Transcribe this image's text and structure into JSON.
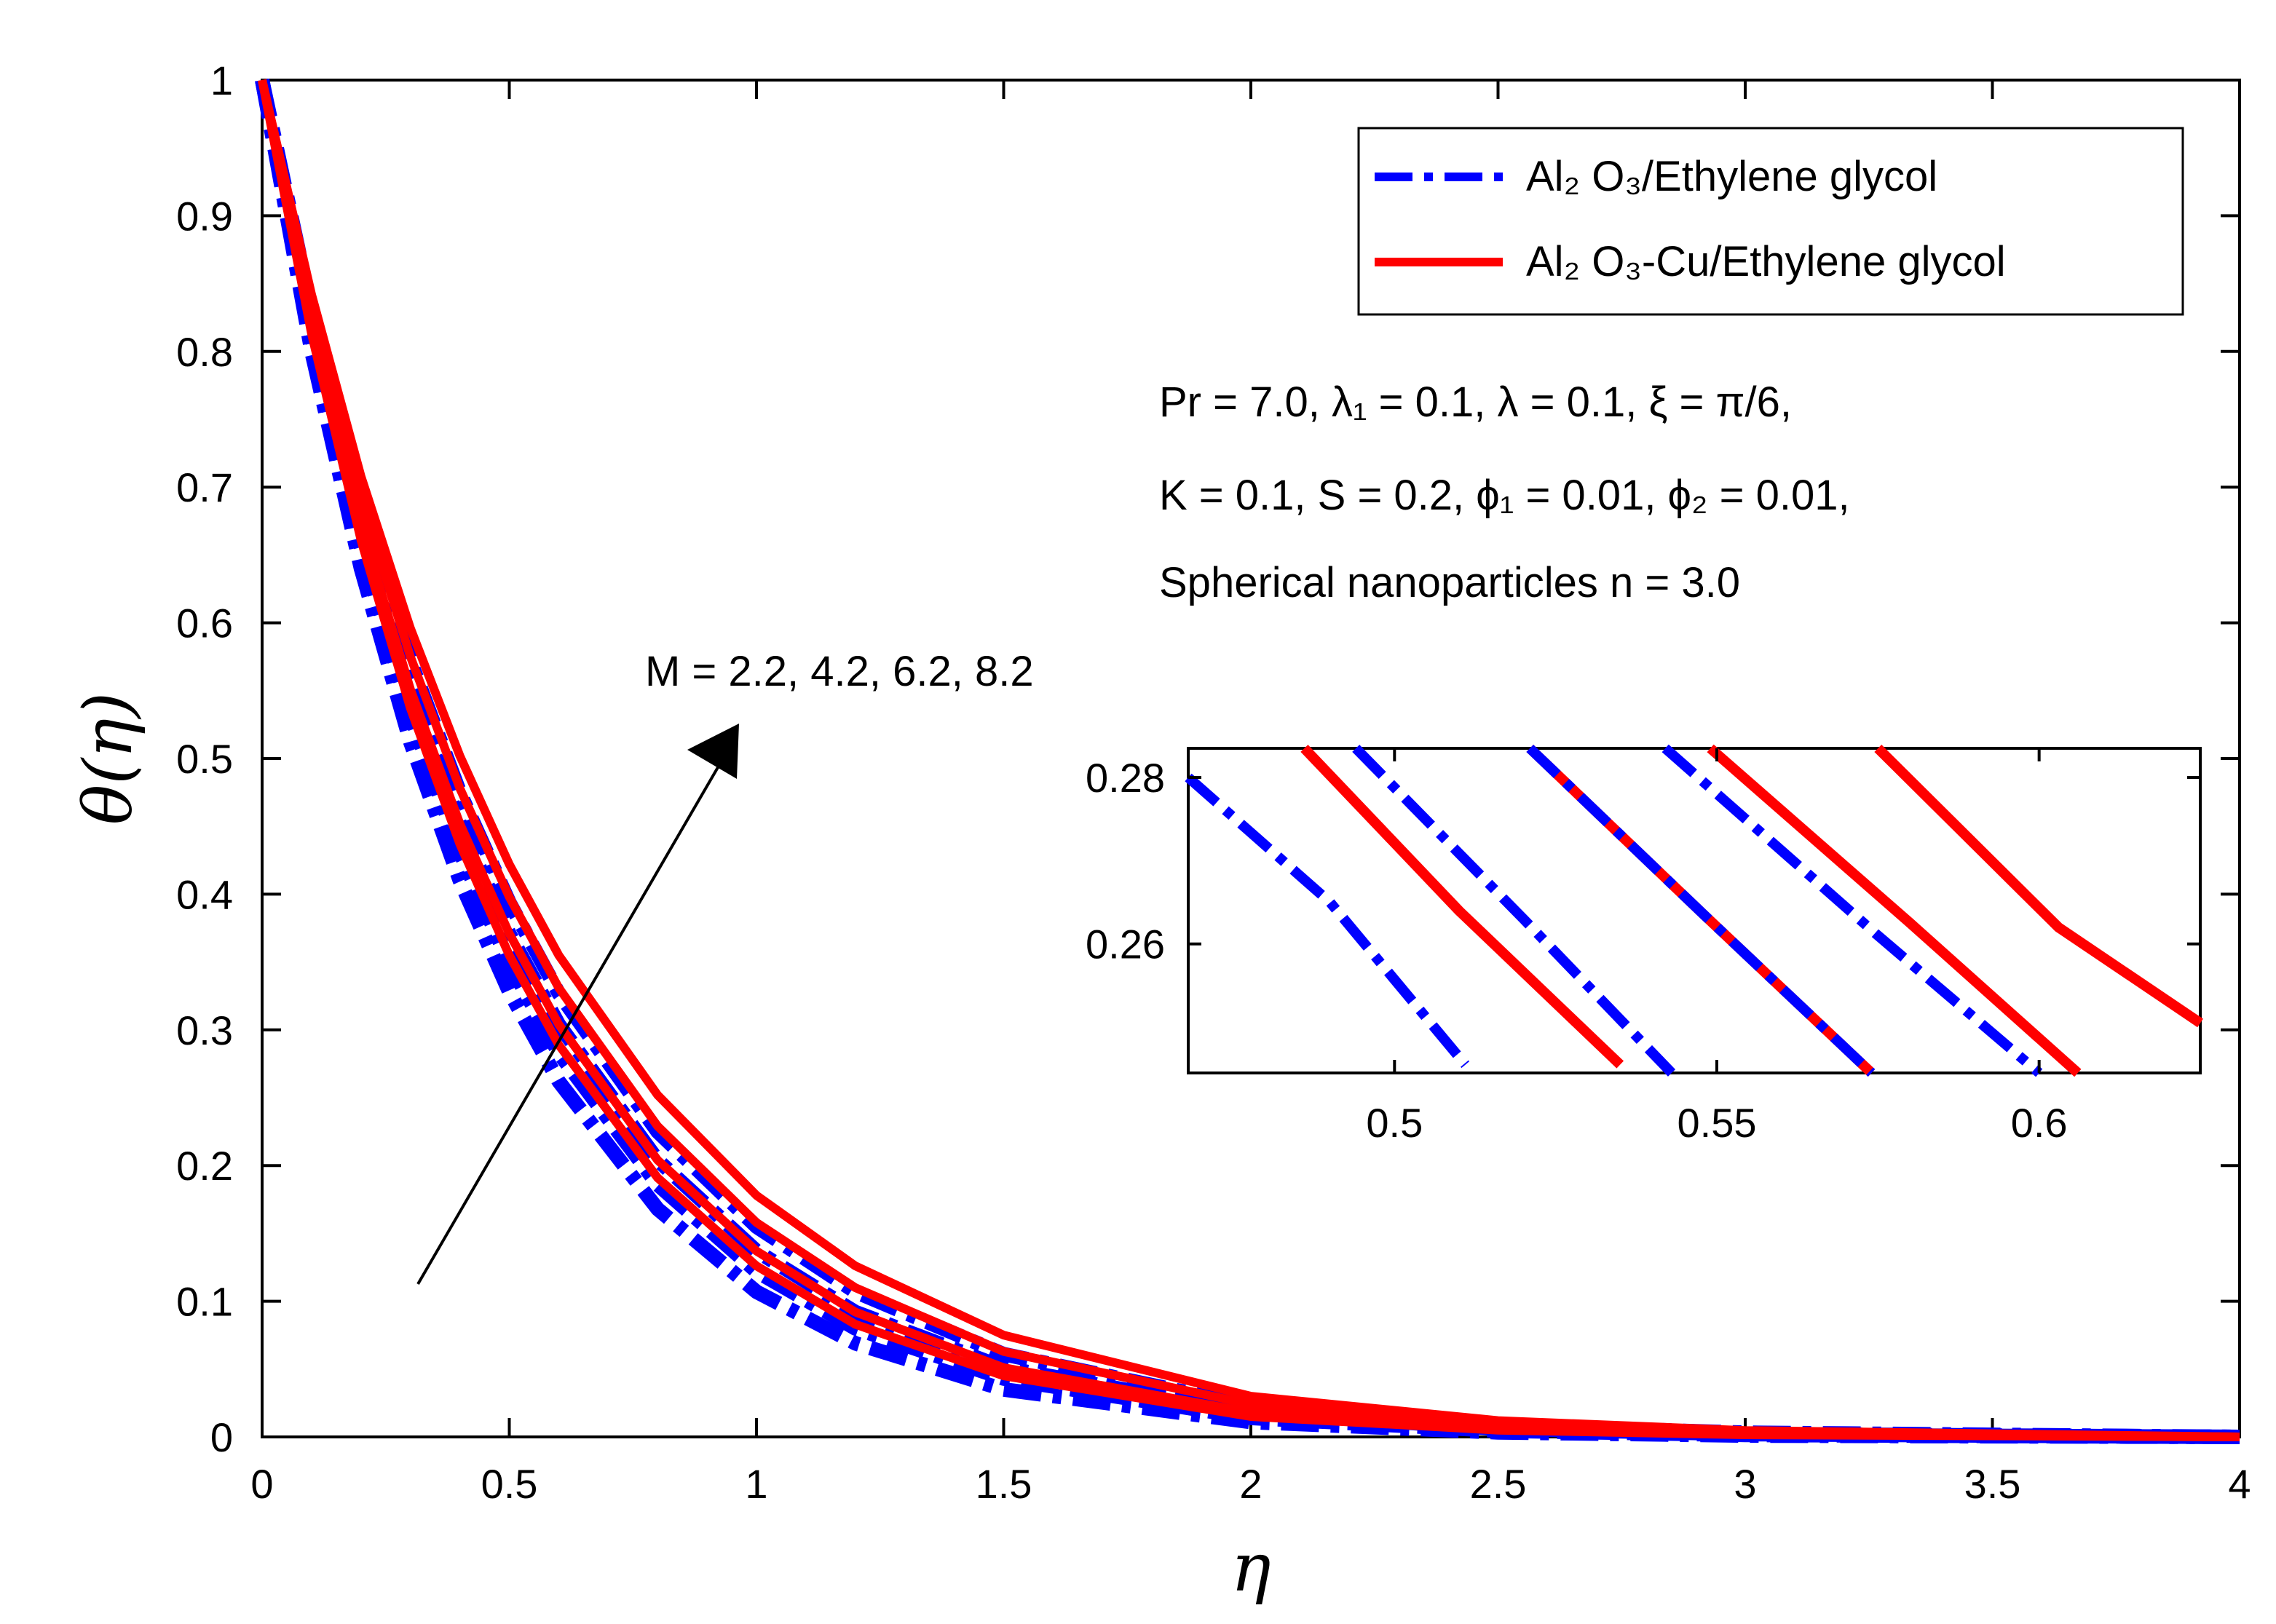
{
  "chart_data": {
    "type": "line",
    "xlabel": "η",
    "ylabel": "θ(η)",
    "xlim": [
      0,
      4
    ],
    "ylim": [
      0,
      1
    ],
    "xticks": [
      "0",
      "0.5",
      "1",
      "1.5",
      "2",
      "2.5",
      "3",
      "3.5",
      "4"
    ],
    "yticks": [
      "0",
      "0.1",
      "0.2",
      "0.3",
      "0.4",
      "0.5",
      "0.6",
      "0.7",
      "0.8",
      "0.9",
      "1"
    ],
    "grid": false,
    "legend_position": "top-right",
    "legend": [
      {
        "label": "Al₂ O₃/Ethylene glycol",
        "color": "#0000ff",
        "style": "dash-dot"
      },
      {
        "label": "Al₂ O₃-Cu/Ethylene glycol",
        "color": "#ff0000",
        "style": "solid"
      }
    ],
    "annotations": {
      "params_line1": "Pr = 7.0, λ₁ = 0.1, λ = 0.1, ξ = π/6,",
      "params_line2": "K = 0.1, S = 0.2, ϕ₁ = 0.01, ϕ₂ = 0.01,",
      "params_line3": "Spherical nanoparticles n = 3.0",
      "arrow_label": "M = 2.2, 4.2, 6.2, 8.2"
    },
    "M_values": [
      2.2,
      4.2,
      6.2,
      8.2
    ],
    "series": [
      {
        "fluid": "Al2O3/Ethylene glycol",
        "M": 2.2,
        "color": "#0000ff",
        "style": "dash-dot",
        "x": [
          0,
          0.1,
          0.2,
          0.3,
          0.4,
          0.5,
          0.6,
          0.8,
          1.0,
          1.2,
          1.5,
          2.0,
          2.5,
          3.0,
          4.0
        ],
        "y": [
          1,
          0.8,
          0.64,
          0.512,
          0.41,
          0.328,
          0.262,
          0.168,
          0.107,
          0.069,
          0.035,
          0.011,
          0.0034,
          0.001,
          0
        ]
      },
      {
        "fluid": "Al2O3/Ethylene glycol",
        "M": 4.2,
        "color": "#0000ff",
        "style": "dash-dot",
        "x": [
          0,
          0.1,
          0.2,
          0.3,
          0.4,
          0.5,
          0.6,
          0.8,
          1.0,
          1.2,
          1.5,
          2.0,
          2.5,
          3.0,
          4.0
        ],
        "y": [
          1,
          0.81,
          0.656,
          0.532,
          0.431,
          0.349,
          0.283,
          0.186,
          0.122,
          0.08,
          0.043,
          0.014,
          0.0046,
          0.0015,
          0
        ]
      },
      {
        "fluid": "Al2O3/Ethylene glycol",
        "M": 6.2,
        "color": "#0000ff",
        "style": "dash-dot",
        "x": [
          0,
          0.1,
          0.2,
          0.3,
          0.4,
          0.5,
          0.6,
          0.8,
          1.0,
          1.2,
          1.5,
          2.0,
          2.5,
          3.0,
          4.0
        ],
        "y": [
          1,
          0.82,
          0.672,
          0.551,
          0.452,
          0.371,
          0.304,
          0.204,
          0.137,
          0.092,
          0.051,
          0.018,
          0.0061,
          0.0021,
          0
        ]
      },
      {
        "fluid": "Al2O3/Ethylene glycol",
        "M": 8.2,
        "color": "#0000ff",
        "style": "dash-dot",
        "x": [
          0,
          0.1,
          0.2,
          0.3,
          0.4,
          0.5,
          0.6,
          0.8,
          1.0,
          1.2,
          1.5,
          2.0,
          2.5,
          3.0,
          4.0
        ],
        "y": [
          1,
          0.83,
          0.689,
          0.572,
          0.475,
          0.394,
          0.327,
          0.225,
          0.155,
          0.107,
          0.061,
          0.023,
          0.0085,
          0.0031,
          0
        ]
      },
      {
        "fluid": "Al2O3-Cu/Ethylene glycol",
        "M": 2.2,
        "color": "#ff0000",
        "style": "solid",
        "x": [
          0,
          0.1,
          0.2,
          0.3,
          0.4,
          0.5,
          0.6,
          0.8,
          1.0,
          1.2,
          1.5,
          2.0,
          2.5,
          3.0,
          4.0
        ],
        "y": [
          1,
          0.813,
          0.661,
          0.537,
          0.437,
          0.355,
          0.289,
          0.191,
          0.126,
          0.083,
          0.045,
          0.015,
          0.005,
          0.0016,
          0
        ]
      },
      {
        "fluid": "Al2O3-Cu/Ethylene glycol",
        "M": 4.2,
        "color": "#ff0000",
        "style": "solid",
        "x": [
          0,
          0.1,
          0.2,
          0.3,
          0.4,
          0.5,
          0.6,
          0.8,
          1.0,
          1.2,
          1.5,
          2.0,
          2.5,
          3.0,
          4.0
        ],
        "y": [
          1,
          0.82,
          0.672,
          0.551,
          0.452,
          0.371,
          0.304,
          0.204,
          0.137,
          0.092,
          0.051,
          0.018,
          0.0061,
          0.0021,
          0
        ]
      },
      {
        "fluid": "Al2O3-Cu/Ethylene glycol",
        "M": 6.2,
        "color": "#ff0000",
        "style": "solid",
        "x": [
          0,
          0.1,
          0.2,
          0.3,
          0.4,
          0.5,
          0.6,
          0.8,
          1.0,
          1.2,
          1.5,
          2.0,
          2.5,
          3.0,
          4.0
        ],
        "y": [
          1,
          0.832,
          0.692,
          0.575,
          0.478,
          0.398,
          0.331,
          0.229,
          0.158,
          0.11,
          0.063,
          0.024,
          0.009,
          0.0033,
          0
        ]
      },
      {
        "fluid": "Al2O3-Cu/Ethylene glycol",
        "M": 8.2,
        "color": "#ff0000",
        "style": "solid",
        "x": [
          0,
          0.1,
          0.2,
          0.3,
          0.4,
          0.5,
          0.6,
          0.8,
          1.0,
          1.2,
          1.5,
          2.0,
          2.5,
          3.0,
          4.0
        ],
        "y": [
          1,
          0.842,
          0.708,
          0.596,
          0.502,
          0.422,
          0.355,
          0.252,
          0.178,
          0.126,
          0.075,
          0.03,
          0.012,
          0.0047,
          0
        ]
      }
    ],
    "inset": {
      "xlim": [
        0.468,
        0.625
      ],
      "ylim": [
        0.2445,
        0.2835
      ],
      "xticks": [
        "0.5",
        "0.55",
        "0.6"
      ],
      "yticks": [
        "0.26",
        "0.28"
      ],
      "series": [
        {
          "color": "#0000ff",
          "style": "dash-dot",
          "x": [
            0.468,
            0.49,
            0.511
          ],
          "y": [
            0.28,
            0.265,
            0.2455
          ]
        },
        {
          "color": "#ff0000",
          "style": "solid",
          "x": [
            0.486,
            0.51,
            0.535
          ],
          "y": [
            0.2835,
            0.264,
            0.2455
          ]
        },
        {
          "color": "#0000ff",
          "style": "dash-dot",
          "x": [
            0.494,
            0.52,
            0.543
          ],
          "y": [
            0.2835,
            0.263,
            0.2445
          ]
        },
        {
          "color": "#ff0000",
          "style": "solid",
          "x": [
            0.521,
            0.548,
            0.574
          ],
          "y": [
            0.2835,
            0.2635,
            0.2445
          ]
        },
        {
          "color": "#0000ff",
          "style": "dash-dot",
          "x": [
            0.521,
            0.548,
            0.574
          ],
          "y": [
            0.2835,
            0.2635,
            0.2445
          ]
        },
        {
          "color": "#0000ff",
          "style": "dash-dot",
          "x": [
            0.542,
            0.575,
            0.6
          ],
          "y": [
            0.2835,
            0.261,
            0.2445
          ]
        },
        {
          "color": "#ff0000",
          "style": "solid",
          "x": [
            0.549,
            0.58,
            0.606
          ],
          "y": [
            0.2835,
            0.2625,
            0.2445
          ]
        },
        {
          "color": "#ff0000",
          "style": "solid",
          "x": [
            0.575,
            0.603,
            0.625
          ],
          "y": [
            0.2835,
            0.262,
            0.2505
          ]
        }
      ]
    }
  }
}
